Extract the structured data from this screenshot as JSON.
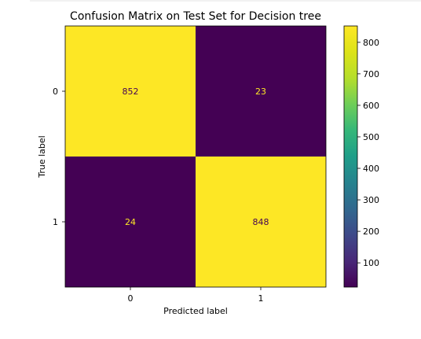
{
  "chart_data": {
    "type": "heatmap",
    "title": "Confusion Matrix on Test Set for Decision tree",
    "xlabel": "Predicted label",
    "ylabel": "True label",
    "x_categories": [
      "0",
      "1"
    ],
    "y_categories": [
      "0",
      "1"
    ],
    "matrix": [
      [
        852,
        23
      ],
      [
        24,
        848
      ]
    ],
    "colormap": "viridis",
    "colorbar": {
      "range": [
        23,
        852
      ],
      "ticks": [
        100,
        200,
        300,
        400,
        500,
        600,
        700,
        800
      ]
    },
    "colors": {
      "high": "#fde725",
      "low": "#440154",
      "text_on_high": "#440154",
      "text_on_low": "#fde725"
    }
  }
}
